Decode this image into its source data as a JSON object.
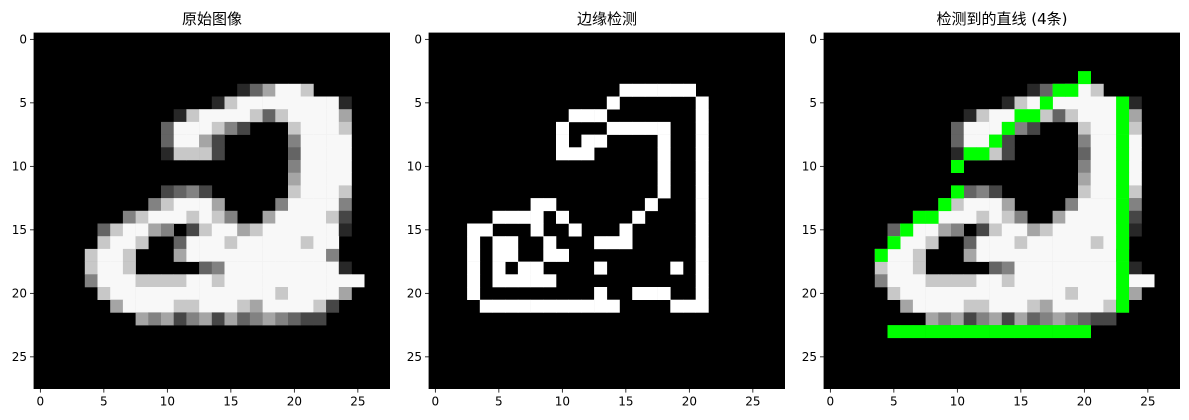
{
  "panels": [
    {
      "title": "原始图像"
    },
    {
      "title": "边缘检测"
    },
    {
      "title": "检测到的直线 (4条)"
    }
  ],
  "ticks": {
    "x": [
      "0",
      "5",
      "10",
      "15",
      "20",
      "25"
    ],
    "y": [
      "0",
      "5",
      "10",
      "15",
      "20",
      "25"
    ]
  },
  "colors": {
    "background": "#000000",
    "edge": "#ffffff",
    "line": "#00ff00"
  },
  "image": {
    "width": 28,
    "height": 28,
    "rows": [
      "............................",
      "............................",
      "............................",
      "............................",
      "................,-+##*......",
      "..............,*########,...",
      "...........,*####*-*####+...",
      "..........-###*=:...*###*...",
      "..........-##+:.....=####...",
      "..........,***:.....-####...",
      "....................=####...",
      "....................+####...",
      "..........:-=:......*###*...",
      ".........=*###+....=####=...",
      ".......=*###*#*=..+####*:...",
      ".....-*##+=.:*##+*######,...",
      ".....*##*..-###*#####*##....",
      "....*##*...+###########=....",
      "....*##*.....-=#########,...",
      "....=###****##*###########..",
      ".....*#############*####+...",
      "......+####**###*+####*:....",
      "........+=+:=+:+-=+=-::.....",
      "............................",
      "............................",
      "............................",
      "............................",
      "............................"
    ]
  },
  "edges": {
    "rows": [
      "............................",
      "............................",
      "............................",
      "............................",
      "...............######.......",
      "..............#......#......",
      "...........###.......#......",
      "..........#...#####..#......",
      "..........#.##....#..#......",
      "..........###.....#..#......",
      "..................#..#......",
      "..................#..#......",
      "..................#..#......",
      "........##.......#...#......",
      ".....####.#.....#....#......",
      "...##...#..#...#.....#......",
      "...#.##..#...###.....#......",
      "...#.##..##..........#......",
      "...#.#.##....#.....#.#......",
      "...#.#####...........#......",
      "...#.........#..###..#......",
      "....###########....###......",
      "............................",
      "............................",
      "............................",
      "............................",
      "............................",
      "............................"
    ]
  },
  "detected_lines": [
    {
      "from": [
        10,
        10
      ],
      "to": [
        20,
        3
      ]
    },
    {
      "from": [
        4,
        17
      ],
      "to": [
        10,
        12
      ]
    },
    {
      "from": [
        23,
        5
      ],
      "to": [
        23,
        21
      ]
    },
    {
      "from": [
        5,
        23
      ],
      "to": [
        20,
        23
      ]
    }
  ]
}
